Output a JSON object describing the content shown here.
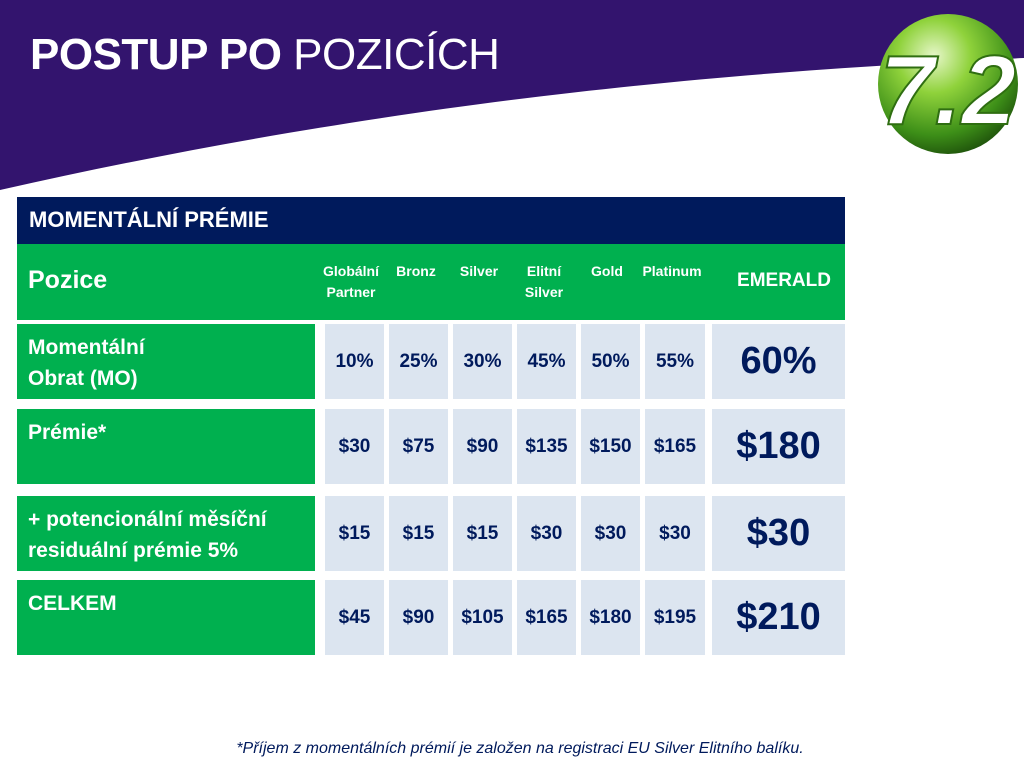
{
  "slide": {
    "title_bold": "POSTUP PO",
    "title_regular": " POZICÍCH",
    "logo_text": "7.2",
    "colors": {
      "banner": "#33146e",
      "accent_green": "#00b04f",
      "header_navy": "#001a5c",
      "cell_bg": "#dce5f0"
    }
  },
  "table": {
    "header_title": "MOMENTÁLNÍ PRÉMIE",
    "pozice_label": "Pozice",
    "columns": [
      {
        "line1": "Globální",
        "line2": "Partner"
      },
      {
        "line1": "Bronz",
        "line2": ""
      },
      {
        "line1": "Silver",
        "line2": ""
      },
      {
        "line1": "Elitní",
        "line2": "Silver"
      },
      {
        "line1": "Gold",
        "line2": ""
      },
      {
        "line1": "Platinum",
        "line2": ""
      }
    ],
    "emerald_label": "EMERALD",
    "rows": [
      {
        "label": "Momentální\nObrat (MO)",
        "values": [
          "10%",
          "25%",
          "30%",
          "45%",
          "50%",
          "55%"
        ],
        "emerald": "60%"
      },
      {
        "label": "Prémie*",
        "values": [
          "$30",
          "$75",
          "$90",
          "$135",
          "$150",
          "$165"
        ],
        "emerald": "$180"
      },
      {
        "label": "+ potencionální měsíční\nresiduální prémie 5%",
        "values": [
          "$15",
          "$15",
          "$15",
          "$30",
          "$30",
          "$30"
        ],
        "emerald": "$30"
      },
      {
        "label": "CELKEM",
        "values": [
          "$45",
          "$90",
          "$105",
          "$165",
          "$180",
          "$195"
        ],
        "emerald": "$210"
      }
    ]
  },
  "footnote": "*Příjem z momentálních prémií  je založen na registraci EU Silver Elitního balíku."
}
